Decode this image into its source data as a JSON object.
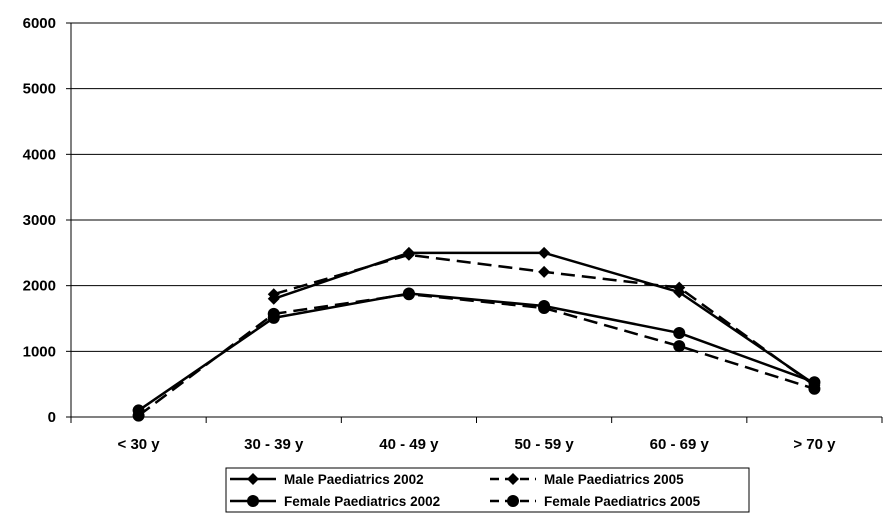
{
  "chart_data": {
    "type": "line",
    "title": "",
    "xlabel": "",
    "ylabel": "",
    "categories": [
      "< 30 y",
      "30 - 39 y",
      "40 - 49 y",
      "50 - 59 y",
      "60 - 69 y",
      "> 70 y"
    ],
    "ylim": [
      0,
      6000
    ],
    "yticks": [
      0,
      1000,
      2000,
      3000,
      4000,
      5000,
      6000
    ],
    "grid": true,
    "legend_position": "bottom",
    "series": [
      {
        "name": "Male Paediatrics 2002",
        "marker": "diamond",
        "line": "solid",
        "values": [
          null,
          1800,
          2500,
          2500,
          1900,
          500
        ]
      },
      {
        "name": "Male Paediatrics 2005",
        "marker": "diamond",
        "line": "dashed",
        "values": [
          null,
          1870,
          2470,
          2210,
          1970,
          480
        ]
      },
      {
        "name": "Female Paediatrics 2002",
        "marker": "circle",
        "line": "solid",
        "values": [
          100,
          1510,
          1880,
          1690,
          1280,
          530
        ]
      },
      {
        "name": "Female Paediatrics 2005",
        "marker": "circle",
        "line": "dashed",
        "values": [
          20,
          1570,
          1870,
          1660,
          1080,
          430
        ]
      }
    ],
    "colors": {
      "line": "#000000",
      "grid": "#000000",
      "background": "#ffffff"
    }
  }
}
